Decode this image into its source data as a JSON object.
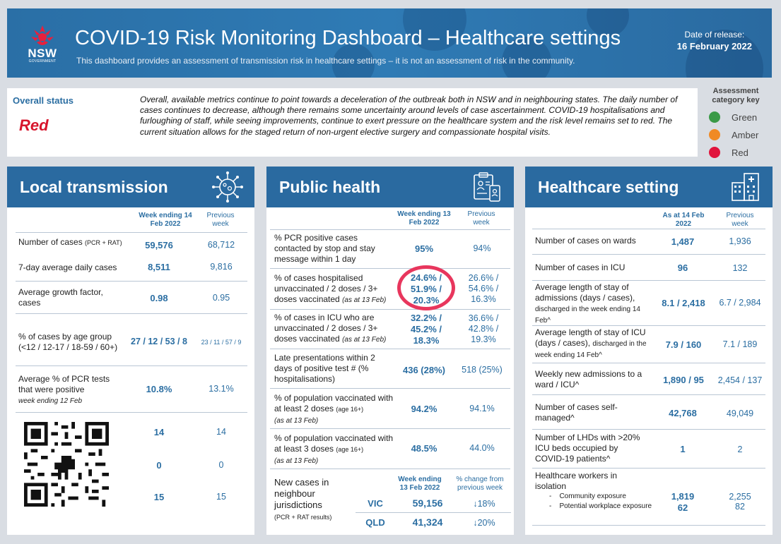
{
  "header": {
    "logo_nsw": "NSW",
    "logo_gov": "GOVERNMENT",
    "title": "COVID-19 Risk Monitoring Dashboard – Healthcare settings",
    "subtitle": "This dashboard provides an assessment of transmission risk in healthcare settings – it is not an assessment of risk in the community.",
    "release_label": "Date of release:",
    "release_date": "16 February 2022"
  },
  "status": {
    "label": "Overall status",
    "value": "Red",
    "text": "Overall, available metrics continue to point towards a deceleration of the outbreak both in NSW and in neighbouring states. The daily number of cases continues to decrease, although there remains some uncertainty around levels of case ascertainment. COVID-19 hospitalisations and furloughing of staff, while seeing improvements, continue to exert pressure on the healthcare system and the risk level remains set to red. The current situation allows for the staged return of non-urgent elective surgery and compassionate hospital visits."
  },
  "key": {
    "title": "Assessment category key",
    "items": [
      {
        "label": "Green",
        "color": "#3a9a47"
      },
      {
        "label": "Amber",
        "color": "#f08a24"
      },
      {
        "label": "Red",
        "color": "#e0143c"
      }
    ]
  },
  "local": {
    "title": "Local transmission",
    "col1": "Week ending 14 Feb 2022",
    "col2": "Previous week",
    "rows": [
      {
        "label": "Number of cases",
        "note": "(PCR + RAT)",
        "v1": "59,576",
        "v2": "68,712"
      },
      {
        "label": "7-day average daily cases",
        "v1": "8,511",
        "v2": "9,816"
      },
      {
        "label": "Average growth factor, cases",
        "v1": "0.98",
        "v2": "0.95"
      },
      {
        "label": "% of cases by age group (<12 / 12-17 / 18-59 / 60+)",
        "v1": "27 / 12 / 53 / 8",
        "v2": "23 / 11 / 57 / 9"
      },
      {
        "label": "Average % of PCR tests that were positive",
        "note": "week ending 12 Feb",
        "v1": "10.8%",
        "v2": "13.1%"
      },
      {
        "label": "",
        "v1": "14",
        "v2": "14"
      },
      {
        "label": "",
        "v1": "0",
        "v2": "0"
      },
      {
        "label": "",
        "v1": "15",
        "v2": "15"
      }
    ]
  },
  "public": {
    "title": "Public health",
    "col1": "Week ending 13 Feb 2022",
    "col2": "Previous week",
    "rows": [
      {
        "label": "% PCR positive cases contacted by stop and stay message within 1 day",
        "v1": "95%",
        "v2": "94%"
      },
      {
        "label": "% of cases hospitalised unvaccinated / 2 doses / 3+ doses vaccinated",
        "note": "(as at 13 Feb)",
        "v1": "24.6% / 51.9% / 20.3%",
        "v2": "26.6% / 54.6% / 16.3%"
      },
      {
        "label": "% of cases in ICU who are unvaccinated / 2 doses / 3+ doses vaccinated",
        "note": "(as at 13 Feb)",
        "v1": "32.2% / 45.2% / 18.3%",
        "v2": "36.6% / 42.8% / 19.3%"
      },
      {
        "label": "Late presentations within 2 days of positive test # (% hospitalisations)",
        "v1": "436 (28%)",
        "v2": "518 (25%)"
      },
      {
        "label": "% of population vaccinated with at least 2 doses",
        "small": "(age 16+)",
        "note": "(as at 13 Feb)",
        "v1": "94.2%",
        "v2": "94.1%"
      },
      {
        "label": "% of population vaccinated with at least 3 doses",
        "small": "(age 16+)",
        "note": "(as at 13 Feb)",
        "v1": "48.5%",
        "v2": "44.0%"
      }
    ],
    "neighbour": {
      "label": "New cases in neighbour jurisdictions",
      "note": "(PCR + RAT results)",
      "col1": "Week ending 13 Feb 2022",
      "col2": "% change from previous week",
      "rows": [
        {
          "state": "VIC",
          "v1": "59,156",
          "v2": "↓18%"
        },
        {
          "state": "QLD",
          "v1": "41,324",
          "v2": "↓20%"
        }
      ]
    }
  },
  "health": {
    "title": "Healthcare setting",
    "col1": "As at 14 Feb 2022",
    "col2": "Previous week",
    "rows": [
      {
        "label": "Number of cases on wards",
        "v1": "1,487",
        "v2": "1,936"
      },
      {
        "label": "Number of cases in ICU",
        "v1": "96",
        "v2": "132"
      },
      {
        "label": "Average length of stay of admissions (days / cases),",
        "small": "discharged in the week ending 14 Feb^",
        "v1": "8.1 / 2,418",
        "v2": "6.7 / 2,984"
      },
      {
        "label": "Average length of stay of ICU (days / cases),",
        "small": "discharged in the week ending 14 Feb^",
        "v1": "7.9 / 160",
        "v2": "7.1 / 189"
      },
      {
        "label": "Weekly new admissions to a ward / ICU^",
        "v1": "1,890 / 95",
        "v2": "2,454 / 137"
      },
      {
        "label": "Number of cases self-managed^",
        "v1": "42,768",
        "v2": "49,049"
      },
      {
        "label": "Number of LHDs with >20% ICU beds occupied by COVID-19 patients^",
        "v1": "1",
        "v2": "2"
      },
      {
        "label": "Healthcare workers in isolation",
        "sub1": "Community exposure",
        "sub2": "Potential workplace exposure",
        "v1a": "1,819",
        "v1b": "62",
        "v2a": "2,255",
        "v2b": "82"
      }
    ]
  }
}
